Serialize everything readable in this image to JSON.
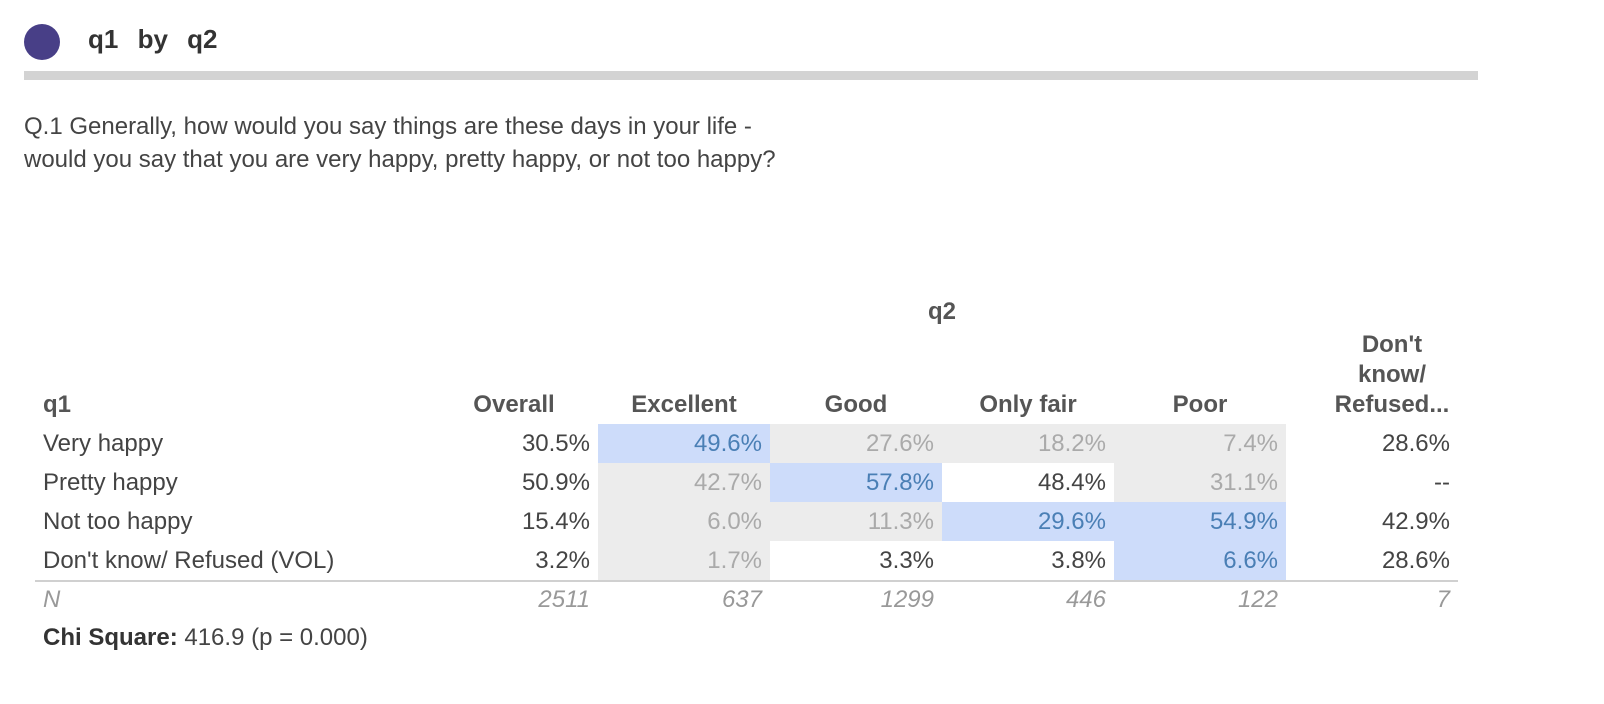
{
  "header": {
    "title": "q1 by q2",
    "accent": "#483f87"
  },
  "question": "Q.1 Generally, how would you say things are these days in your life - would you say that you are very happy, pretty happy, or not too happy?",
  "table": {
    "col_group": "q2",
    "row_var": "q1",
    "columns": [
      "Overall",
      "Excellent",
      "Good",
      "Only fair",
      "Poor",
      "Don't know/ Refused..."
    ],
    "rows": [
      {
        "label": "Very happy",
        "values": [
          "30.5%",
          "49.6%",
          "27.6%",
          "18.2%",
          "7.4%",
          "28.6%"
        ],
        "styles": [
          "n",
          "hi",
          "lo",
          "lo",
          "lo",
          "n"
        ]
      },
      {
        "label": "Pretty happy",
        "values": [
          "50.9%",
          "42.7%",
          "57.8%",
          "48.4%",
          "31.1%",
          "--"
        ],
        "styles": [
          "n",
          "lo",
          "hi",
          "n",
          "lo",
          "n"
        ]
      },
      {
        "label": "Not too happy",
        "values": [
          "15.4%",
          "6.0%",
          "11.3%",
          "29.6%",
          "54.9%",
          "42.9%"
        ],
        "styles": [
          "n",
          "lo",
          "lo",
          "hi",
          "hi",
          "n"
        ]
      },
      {
        "label": "Don't know/ Refused (VOL)",
        "values": [
          "3.2%",
          "1.7%",
          "3.3%",
          "3.8%",
          "6.6%",
          "28.6%"
        ],
        "styles": [
          "n",
          "lo",
          "n",
          "n",
          "hi",
          "n"
        ]
      }
    ],
    "n_row": {
      "label": "N",
      "values": [
        "2511",
        "637",
        "1299",
        "446",
        "122",
        "7"
      ]
    }
  },
  "chi_square": {
    "label": "Chi Square:",
    "value": "416.9 (p = 0.000)"
  }
}
